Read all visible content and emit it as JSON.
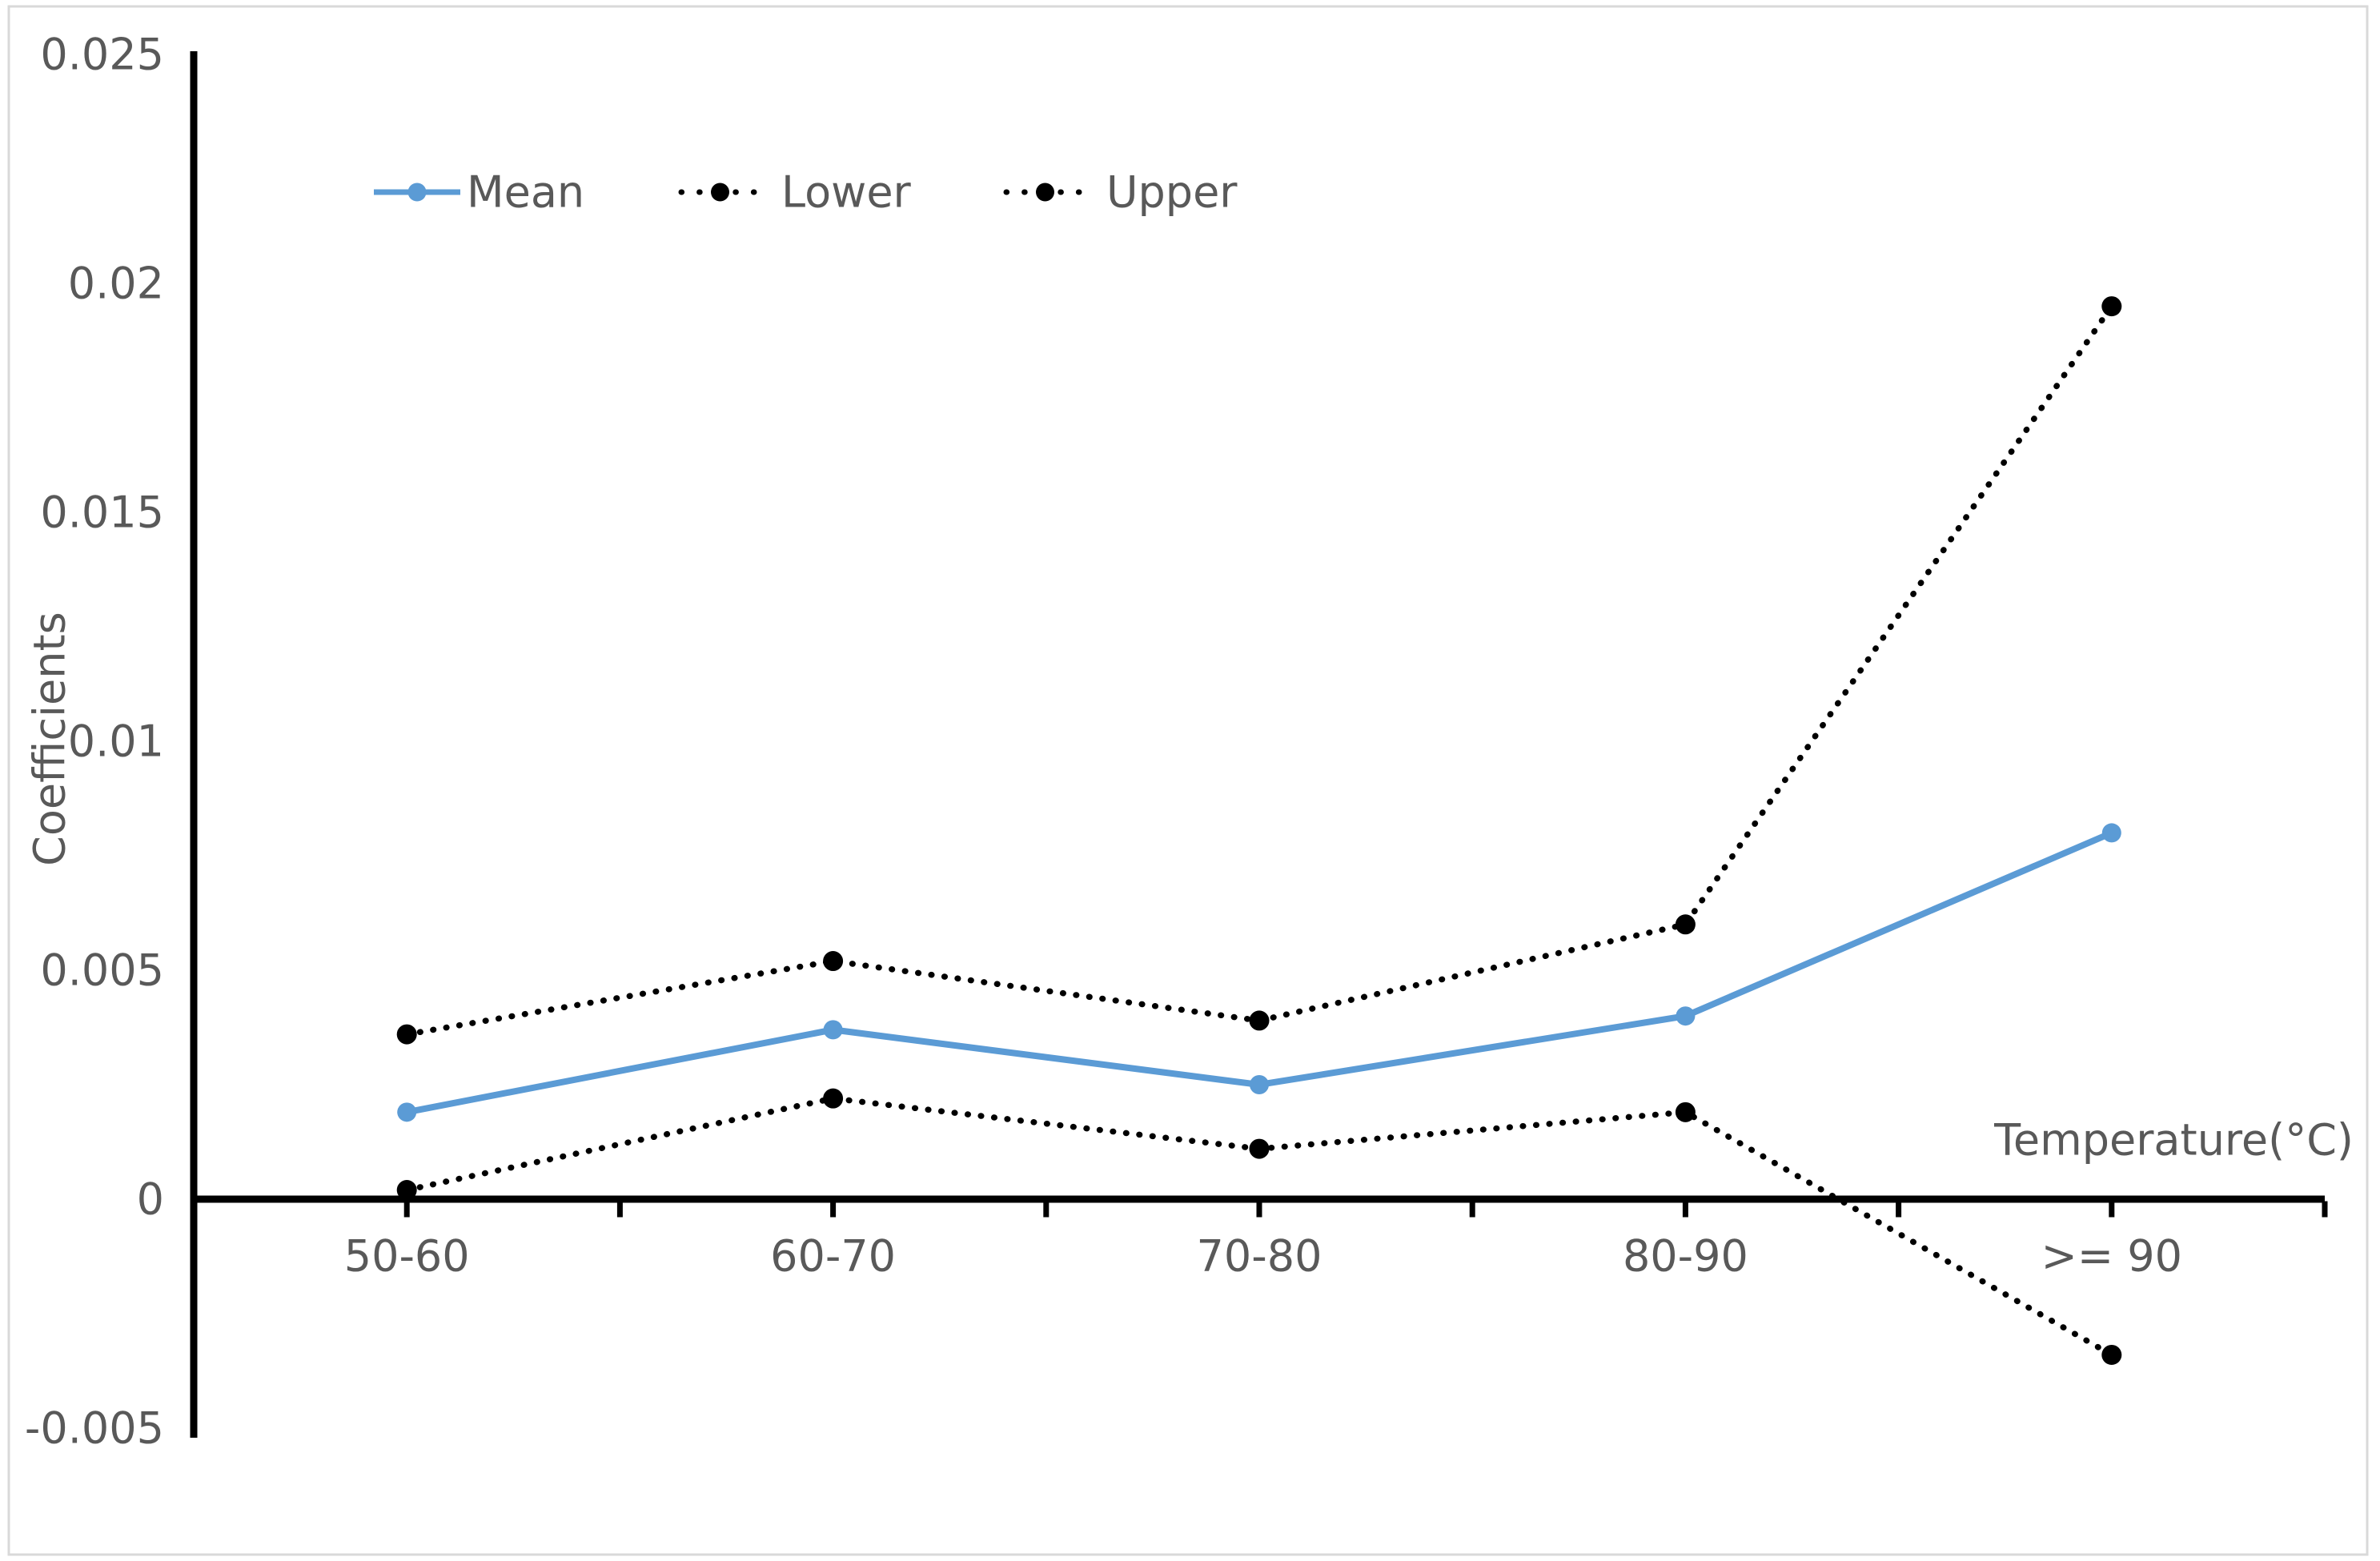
{
  "chart_data": {
    "type": "line",
    "title": "",
    "categories": [
      "50-60",
      "60-70",
      "70-80",
      "80-90",
      ">= 90"
    ],
    "series": [
      {
        "name": "Mean",
        "values": [
          0.0019,
          0.0037,
          0.0025,
          0.004,
          0.008
        ],
        "color": "#5B9BD5",
        "style": "solid",
        "marker": "circle"
      },
      {
        "name": "Lower",
        "values": [
          0.0002,
          0.0022,
          0.0011,
          0.0019,
          -0.0034
        ],
        "color": "#000000",
        "style": "dotted",
        "marker": "circle"
      },
      {
        "name": "Upper",
        "values": [
          0.0036,
          0.0052,
          0.0039,
          0.006,
          0.0195
        ],
        "color": "#000000",
        "style": "dotted",
        "marker": "circle"
      }
    ],
    "xlabel": "Temperature(°C)",
    "ylabel": "Coefficients",
    "ylim": [
      -0.005,
      0.025
    ],
    "y_ticks": [
      0.025,
      0.02,
      0.015,
      0.01,
      0.005,
      0,
      -0.005
    ],
    "y_tick_labels": [
      "0.025",
      "0.02",
      "0.015",
      "0.01",
      "0.005",
      "0",
      "-0.005"
    ],
    "legend_position": "top-left-inside",
    "legend_order": [
      "Mean",
      "Lower",
      "Upper"
    ],
    "grid": "off"
  },
  "colors": {
    "accent_blue": "#5B9BD5",
    "text_gray": "#595959",
    "axis_black": "#000000",
    "border_gray": "#D9D9D9",
    "background": "#FFFFFF"
  }
}
